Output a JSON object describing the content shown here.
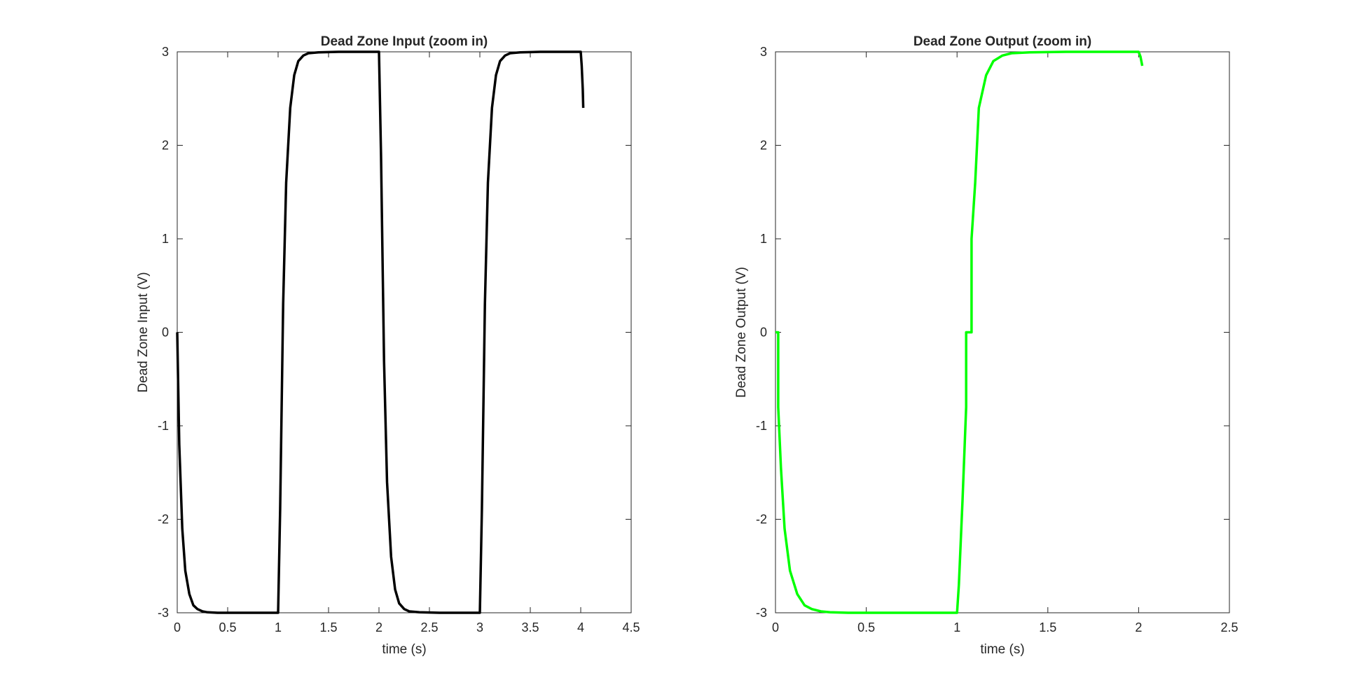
{
  "chart_data": [
    {
      "type": "line",
      "title": "Dead Zone Input (zoom in)",
      "xlabel": "time (s)",
      "ylabel": "Dead Zone Input (V)",
      "xlim": [
        0,
        4.5
      ],
      "ylim": [
        -3,
        3
      ],
      "xticks": [
        0,
        0.5,
        1,
        1.5,
        2,
        2.5,
        3,
        3.5,
        4,
        4.5
      ],
      "xtick_labels": [
        "0",
        "0.5",
        "1",
        "1.5",
        "2",
        "2.5",
        "3",
        "3.5",
        "4",
        "4.5"
      ],
      "yticks": [
        -3,
        -2,
        -1,
        0,
        1,
        2,
        3
      ],
      "ytick_labels": [
        "-3",
        "-2",
        "-1",
        "0",
        "1",
        "2",
        "3"
      ],
      "grid": false,
      "series": [
        {
          "color": "#000000",
          "x": [
            0,
            0.02,
            0.05,
            0.08,
            0.12,
            0.16,
            0.2,
            0.25,
            0.3,
            0.4,
            0.6,
            0.8,
            1.0,
            1.02,
            1.05,
            1.08,
            1.12,
            1.16,
            1.2,
            1.25,
            1.3,
            1.4,
            1.6,
            1.8,
            2.0,
            2.02,
            2.05,
            2.08,
            2.12,
            2.16,
            2.2,
            2.25,
            2.3,
            2.4,
            2.6,
            2.8,
            3.0,
            3.02,
            3.05,
            3.08,
            3.12,
            3.16,
            3.2,
            3.25,
            3.3,
            3.4,
            3.6,
            3.8,
            4.0,
            4.01,
            4.02,
            4.025
          ],
          "y": [
            0,
            -1.2,
            -2.1,
            -2.55,
            -2.8,
            -2.92,
            -2.96,
            -2.985,
            -2.995,
            -3,
            -3,
            -3,
            -3,
            -1.9,
            0.3,
            1.6,
            2.4,
            2.75,
            2.9,
            2.96,
            2.985,
            2.995,
            3,
            3,
            3,
            1.9,
            -0.3,
            -1.6,
            -2.4,
            -2.75,
            -2.9,
            -2.96,
            -2.985,
            -2.995,
            -3,
            -3,
            -3,
            -1.9,
            0.3,
            1.6,
            2.4,
            2.75,
            2.9,
            2.96,
            2.985,
            2.995,
            3,
            3,
            3,
            2.85,
            2.6,
            2.4
          ]
        }
      ]
    },
    {
      "type": "line",
      "title": "Dead Zone Output (zoom in)",
      "xlabel": "time (s)",
      "ylabel": "Dead Zone Output (V)",
      "xlim": [
        0,
        2.5
      ],
      "ylim": [
        -3,
        3
      ],
      "xticks": [
        0,
        0.5,
        1,
        1.5,
        2,
        2.5
      ],
      "xtick_labels": [
        "0",
        "0.5",
        "1",
        "1.5",
        "2",
        "2.5"
      ],
      "yticks": [
        -3,
        -2,
        -1,
        0,
        1,
        2,
        3
      ],
      "ytick_labels": [
        "-3",
        "-2",
        "-1",
        "0",
        "1",
        "2",
        "3"
      ],
      "grid": false,
      "series": [
        {
          "color": "#00ff00",
          "x": [
            0,
            0.015,
            0.015,
            0.03,
            0.05,
            0.08,
            0.12,
            0.16,
            0.2,
            0.25,
            0.3,
            0.4,
            0.6,
            0.8,
            1.0,
            1.01,
            1.03,
            1.05,
            1.05,
            1.08,
            1.08,
            1.1,
            1.12,
            1.16,
            1.2,
            1.25,
            1.3,
            1.4,
            1.6,
            1.8,
            2.0,
            2.01,
            2.02
          ],
          "y": [
            0,
            0,
            -0.8,
            -1.45,
            -2.1,
            -2.55,
            -2.8,
            -2.92,
            -2.96,
            -2.985,
            -2.995,
            -3,
            -3,
            -3,
            -3,
            -2.7,
            -1.8,
            -0.8,
            0,
            0,
            1.0,
            1.6,
            2.4,
            2.75,
            2.9,
            2.96,
            2.985,
            2.995,
            3,
            3,
            3,
            2.95,
            2.85
          ]
        }
      ]
    }
  ]
}
